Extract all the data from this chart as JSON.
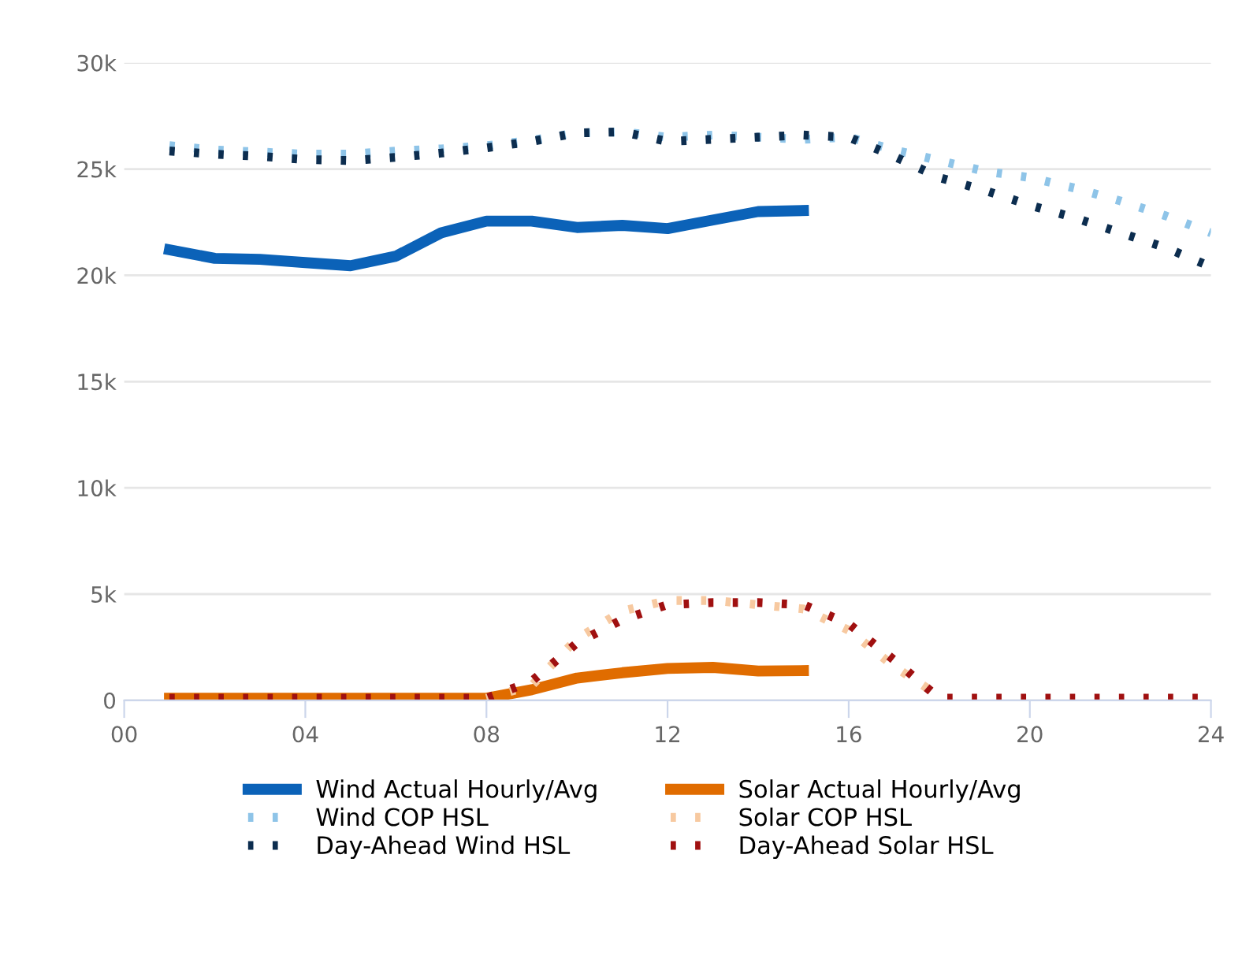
{
  "chart_data": {
    "type": "line",
    "xlim": [
      0,
      24
    ],
    "xticks": [
      {
        "value": 0,
        "label": "00"
      },
      {
        "value": 4,
        "label": "04"
      },
      {
        "value": 8,
        "label": "08"
      },
      {
        "value": 12,
        "label": "12"
      },
      {
        "value": 16,
        "label": "16"
      },
      {
        "value": 20,
        "label": "20"
      },
      {
        "value": 24,
        "label": "24"
      }
    ],
    "ylim": [
      0,
      30000
    ],
    "yticks": [
      {
        "value": 0,
        "label": "0"
      },
      {
        "value": 5000,
        "label": "5k"
      },
      {
        "value": 10000,
        "label": "10k"
      },
      {
        "value": 15000,
        "label": "15k"
      },
      {
        "value": 20000,
        "label": "20k"
      },
      {
        "value": 25000,
        "label": "25k"
      },
      {
        "value": 30000,
        "label": "30k"
      }
    ],
    "grid": "y",
    "legend": "bottom",
    "marker": "none",
    "series": [
      {
        "name": "Wind Actual Hourly/Avg",
        "color": "#0b62b8",
        "line_style": "solid",
        "x": [
          1,
          2,
          3,
          4,
          5,
          6,
          7,
          8,
          9,
          10,
          11,
          12,
          13,
          14,
          15
        ],
        "values": [
          21200,
          20800,
          20750,
          20600,
          20450,
          20900,
          22000,
          22550,
          22550,
          22250,
          22350,
          22200,
          22600,
          23000,
          23050
        ]
      },
      {
        "name": "Wind COP HSL",
        "color": "#8ec4e8",
        "line_style": "dotted",
        "x": [
          1,
          2,
          3,
          4,
          5,
          6,
          7,
          8,
          9,
          10,
          11,
          12,
          13,
          14,
          15,
          16,
          17,
          18,
          19,
          20,
          21,
          22,
          23,
          24
        ],
        "values": [
          26100,
          25900,
          25800,
          25700,
          25700,
          25850,
          25950,
          26100,
          26350,
          26700,
          26750,
          26500,
          26600,
          26500,
          26400,
          26500,
          25900,
          25400,
          24900,
          24600,
          24100,
          23500,
          22800,
          22000
        ]
      },
      {
        "name": "Day-Ahead Wind HSL",
        "color": "#0c2d4f",
        "line_style": "dotted",
        "x": [
          1,
          2,
          3,
          4,
          5,
          6,
          7,
          8,
          9,
          10,
          11,
          12,
          13,
          14,
          15,
          16,
          17,
          18,
          19,
          20,
          21,
          22,
          23,
          24
        ],
        "values": [
          25850,
          25700,
          25600,
          25450,
          25400,
          25550,
          25750,
          26000,
          26300,
          26700,
          26750,
          26300,
          26400,
          26500,
          26600,
          26500,
          25600,
          24600,
          24000,
          23300,
          22700,
          22000,
          21300,
          20400
        ]
      },
      {
        "name": "Solar Actual Hourly/Avg",
        "color": "#e06c00",
        "line_style": "solid",
        "x": [
          1,
          2,
          3,
          4,
          5,
          6,
          7,
          8,
          9,
          10,
          11,
          12,
          13,
          14,
          15
        ],
        "values": [
          100,
          100,
          100,
          100,
          100,
          100,
          100,
          100,
          500,
          1050,
          1300,
          1500,
          1550,
          1380,
          1400
        ]
      },
      {
        "name": "Solar COP HSL",
        "color": "#f7c9a0",
        "line_style": "dotted",
        "x": [
          8,
          9,
          10,
          11,
          12,
          13,
          14,
          15,
          16,
          17,
          18
        ],
        "values": [
          100,
          700,
          2900,
          4200,
          4700,
          4700,
          4500,
          4300,
          3300,
          1600,
          200
        ]
      },
      {
        "name": "Day-Ahead Solar HSL",
        "color": "#a01010",
        "line_style": "dotted",
        "x": [
          1,
          2,
          3,
          4,
          5,
          6,
          7,
          8,
          9,
          10,
          11,
          12,
          13,
          14,
          15,
          16,
          17,
          18,
          19,
          20,
          21,
          22,
          23,
          24
        ],
        "values": [
          100,
          100,
          100,
          100,
          100,
          100,
          100,
          100,
          900,
          2700,
          3800,
          4500,
          4600,
          4600,
          4500,
          3600,
          1900,
          100,
          100,
          100,
          100,
          100,
          100,
          100
        ]
      }
    ]
  }
}
